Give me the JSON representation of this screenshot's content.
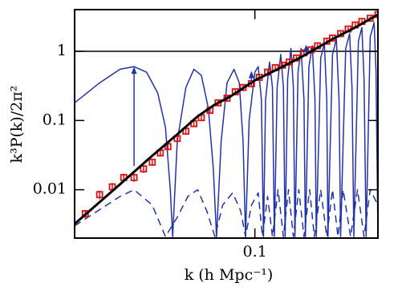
{
  "chart_data": {
    "type": "line",
    "xlabel": "k (h Mpc⁻¹)",
    "ylabel": "k³P(k)/2π²",
    "xscale": "log",
    "yscale": "log",
    "xlim": [
      0.02,
      0.3
    ],
    "ylim": [
      0.002,
      4
    ],
    "xticks": [
      0.1
    ],
    "yticks": [
      0.01,
      0.1,
      1
    ],
    "hline": 1,
    "hline_color": "#000000",
    "series": [
      {
        "kind": "line",
        "color": "#2233aa",
        "width": 1.5,
        "dash": false,
        "x": [
          0.02,
          0.025,
          0.03,
          0.034,
          0.038,
          0.042,
          0.045,
          0.047,
          0.048,
          0.05,
          0.054,
          0.058,
          0.062,
          0.066,
          0.069,
          0.071,
          0.074,
          0.078,
          0.083,
          0.087,
          0.09,
          0.092,
          0.095,
          0.1,
          0.103,
          0.106,
          0.108,
          0.11,
          0.114,
          0.117,
          0.119,
          0.122,
          0.126,
          0.129,
          0.131,
          0.134,
          0.138,
          0.141,
          0.143,
          0.147,
          0.151,
          0.155,
          0.157,
          0.162,
          0.167,
          0.171,
          0.173,
          0.18,
          0.186,
          0.19,
          0.192,
          0.2,
          0.207,
          0.212,
          0.215,
          0.225,
          0.233,
          0.238,
          0.242,
          0.252,
          0.26,
          0.265,
          0.27,
          0.28,
          0.29,
          0.295,
          0.3
        ],
        "values": [
          0.18,
          0.35,
          0.55,
          0.6,
          0.5,
          0.25,
          0.08,
          0.01,
          0.0021,
          0.05,
          0.3,
          0.55,
          0.45,
          0.15,
          0.02,
          0.0021,
          0.05,
          0.35,
          0.55,
          0.35,
          0.05,
          0.0021,
          0.1,
          0.5,
          0.6,
          0.2,
          0.0021,
          0.2,
          0.7,
          0.3,
          0.0021,
          0.3,
          0.9,
          0.3,
          0.0021,
          0.4,
          1.1,
          0.3,
          0.0021,
          0.5,
          1.1,
          0.2,
          0.0021,
          0.6,
          1.2,
          0.2,
          0.0021,
          0.8,
          1.3,
          0.2,
          0.0021,
          0.9,
          1.5,
          0.2,
          0.0021,
          1.1,
          1.8,
          0.3,
          0.0021,
          1.4,
          2.2,
          0.4,
          0.0021,
          1.6,
          2.6,
          0.5,
          0.0021
        ]
      },
      {
        "kind": "line",
        "color": "#2233aa",
        "width": 1.5,
        "dash": true,
        "x": [
          0.02,
          0.03,
          0.034,
          0.04,
          0.045,
          0.05,
          0.055,
          0.06,
          0.065,
          0.07,
          0.075,
          0.082,
          0.088,
          0.092,
          0.097,
          0.103,
          0.107,
          0.112,
          0.117,
          0.123,
          0.129,
          0.135,
          0.141,
          0.148,
          0.155,
          0.163,
          0.17,
          0.18,
          0.19,
          0.2,
          0.21,
          0.22,
          0.235,
          0.25,
          0.265,
          0.28,
          0.3
        ],
        "values": [
          0.003,
          0.008,
          0.01,
          0.006,
          0.0021,
          0.004,
          0.008,
          0.01,
          0.005,
          0.0021,
          0.006,
          0.009,
          0.005,
          0.0021,
          0.006,
          0.009,
          0.0021,
          0.008,
          0.0021,
          0.01,
          0.0021,
          0.01,
          0.0021,
          0.01,
          0.0021,
          0.01,
          0.0021,
          0.01,
          0.0021,
          0.01,
          0.0021,
          0.01,
          0.0021,
          0.01,
          0.0021,
          0.01,
          0.006
        ]
      },
      {
        "kind": "errorbar",
        "color": "#dd1111",
        "x": [
          0.022,
          0.025,
          0.028,
          0.031,
          0.034,
          0.037,
          0.04,
          0.043,
          0.046,
          0.05,
          0.054,
          0.058,
          0.062,
          0.067,
          0.072,
          0.078,
          0.084,
          0.09,
          0.097,
          0.104,
          0.112,
          0.12,
          0.128,
          0.136,
          0.145,
          0.155,
          0.165,
          0.175,
          0.19,
          0.2,
          0.215,
          0.23,
          0.245,
          0.26,
          0.28,
          0.3
        ],
        "values": [
          0.0045,
          0.0085,
          0.011,
          0.015,
          0.015,
          0.02,
          0.025,
          0.034,
          0.042,
          0.055,
          0.07,
          0.09,
          0.11,
          0.14,
          0.18,
          0.21,
          0.26,
          0.3,
          0.34,
          0.42,
          0.5,
          0.58,
          0.63,
          0.7,
          0.8,
          0.95,
          1.05,
          1.2,
          1.4,
          1.55,
          1.8,
          2.1,
          2.4,
          2.7,
          3.0,
          3.4
        ],
        "errors": [
          0.0006,
          0.0012,
          0.0015,
          0.002,
          0.002,
          0.0025,
          0.003,
          0.004,
          0.005,
          0.006,
          0.007,
          0.009,
          0.01,
          0.012,
          0.015,
          0.017,
          0.02,
          0.022,
          0.025,
          0.03,
          0.035,
          0.04,
          0.044,
          0.05,
          0.055,
          0.065,
          0.07,
          0.08,
          0.09,
          0.1,
          0.12,
          0.13,
          0.15,
          0.17,
          0.18,
          0.2
        ]
      },
      {
        "kind": "line",
        "color": "#000000",
        "width": 3,
        "dash": false,
        "x": [
          0.02,
          0.03,
          0.04,
          0.05,
          0.06,
          0.07,
          0.08,
          0.1,
          0.12,
          0.15,
          0.2,
          0.25,
          0.3
        ],
        "values": [
          0.0032,
          0.012,
          0.031,
          0.063,
          0.115,
          0.17,
          0.22,
          0.38,
          0.53,
          0.81,
          1.5,
          2.3,
          3.4
        ]
      }
    ],
    "arrows": [
      {
        "x": 0.034,
        "from": 0.022,
        "to": 0.6
      },
      {
        "x": 0.097,
        "from": 0.35,
        "to": 0.52
      },
      {
        "x": 0.158,
        "from": 0.95,
        "to": 1.25
      }
    ],
    "arrow_color": "#2233aa"
  }
}
